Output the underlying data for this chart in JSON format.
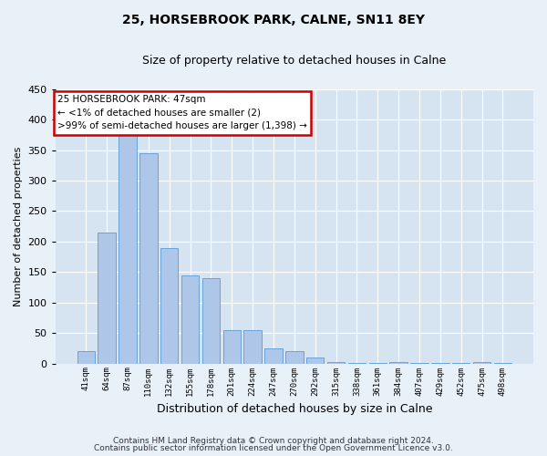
{
  "title1": "25, HORSEBROOK PARK, CALNE, SN11 8EY",
  "title2": "Size of property relative to detached houses in Calne",
  "xlabel": "Distribution of detached houses by size in Calne",
  "ylabel": "Number of detached properties",
  "footer1": "Contains HM Land Registry data © Crown copyright and database right 2024.",
  "footer2": "Contains public sector information licensed under the Open Government Licence v3.0.",
  "annotation_line1": "25 HORSEBROOK PARK: 47sqm",
  "annotation_line2": "← <1% of detached houses are smaller (2)",
  "annotation_line3": ">99% of semi-detached houses are larger (1,398) →",
  "bar_labels": [
    "41sqm",
    "64sqm",
    "87sqm",
    "110sqm",
    "132sqm",
    "155sqm",
    "178sqm",
    "201sqm",
    "224sqm",
    "247sqm",
    "270sqm",
    "292sqm",
    "315sqm",
    "338sqm",
    "361sqm",
    "384sqm",
    "407sqm",
    "429sqm",
    "452sqm",
    "475sqm",
    "498sqm"
  ],
  "bar_values": [
    20,
    215,
    375,
    345,
    190,
    145,
    140,
    55,
    55,
    25,
    20,
    10,
    2,
    1,
    1,
    2,
    1,
    1,
    1,
    2,
    1
  ],
  "bar_color": "#aec6e8",
  "bar_edge_color": "#5b9bd5",
  "highlight_color": "#cc0000",
  "annotation_box_color": "#cc0000",
  "background_color": "#e8f0f8",
  "plot_bg_color": "#d6e4f2",
  "ylim": [
    0,
    450
  ],
  "yticks": [
    0,
    50,
    100,
    150,
    200,
    250,
    300,
    350,
    400,
    450
  ],
  "title1_fontsize": 10,
  "title2_fontsize": 9
}
